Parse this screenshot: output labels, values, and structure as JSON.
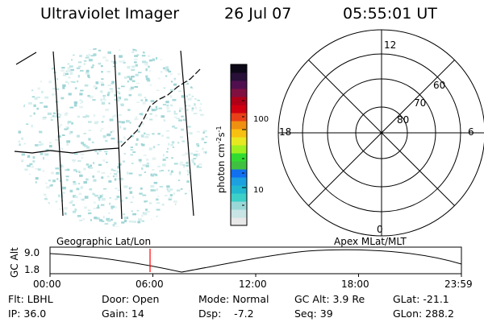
{
  "header": {
    "title": "Ultraviolet Imager",
    "date": "26 Jul 07",
    "time": "05:55:01 UT"
  },
  "colorbar": {
    "label": "photon cm",
    "exp1": "-2",
    "mid": "s",
    "exp2": "-1",
    "ticks": [
      "100",
      "10"
    ],
    "colors": [
      "#e8e8e8",
      "#c8e4e4",
      "#9ad8d8",
      "#3cd0c8",
      "#22b8d0",
      "#1ca0e0",
      "#1070f0",
      "#40c040",
      "#30dc30",
      "#a0f020",
      "#e8e820",
      "#f8c010",
      "#f09010",
      "#e84018",
      "#d00010",
      "#b00018",
      "#801040",
      "#501050",
      "#281038",
      "#0c0818"
    ]
  },
  "polar": {
    "mlt_labels": {
      "top": "12",
      "left": "18",
      "right": "6",
      "bottom": "0"
    },
    "lat_labels": [
      "60",
      "70",
      "80"
    ]
  },
  "timeline": {
    "left_label": "Geographic Lat/Lon",
    "right_label": "Apex MLat/MLT",
    "y_axis": "GC Alt",
    "y_ticks": [
      "9.0",
      "1.8"
    ],
    "x_ticks": [
      "00:00",
      "06:00",
      "12:00",
      "18:00",
      "23:59"
    ],
    "marker_color": "#ff0000"
  },
  "info": {
    "flt": "Flt: LBHL",
    "ip": "IP: 36.0",
    "door": "Door: Open",
    "gain": "Gain: 14",
    "mode": "Mode: Normal",
    "dsp": "Dsp:    -7.2",
    "gcalt": "GC Alt: 3.9 Re",
    "seq": "Seq: 39",
    "glat": "GLat: -21.1",
    "glon": "GLon: 288.2"
  }
}
